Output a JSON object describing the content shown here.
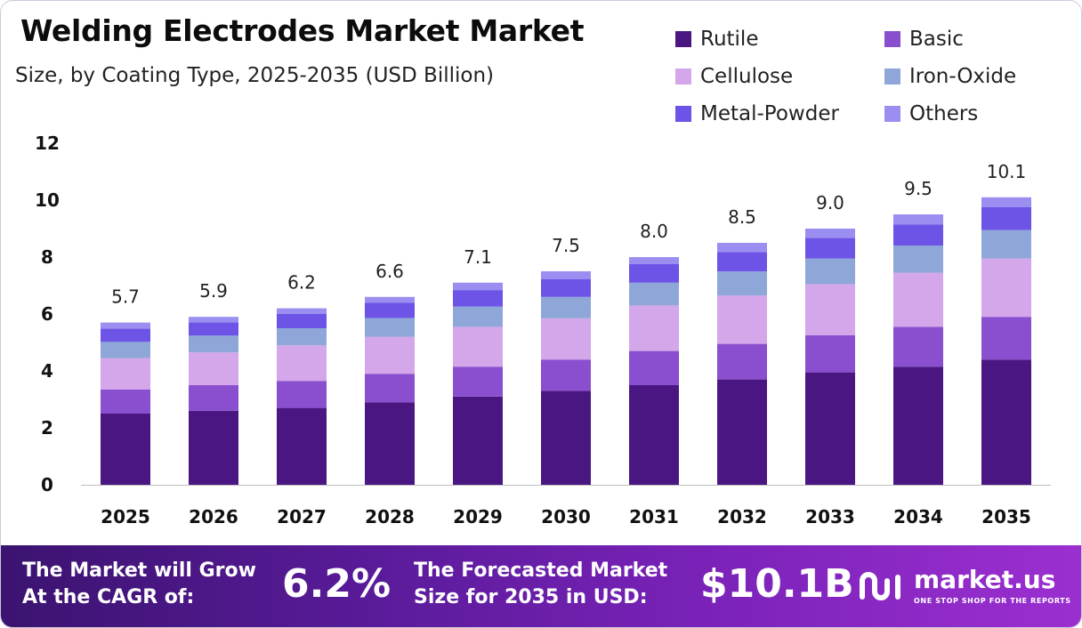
{
  "header": {
    "title": "Welding Electrodes Market Market",
    "subtitle": "Size, by Coating Type, 2025-2035 (USD Billion)"
  },
  "chart_data": {
    "type": "bar",
    "stacked": true,
    "categories": [
      "2025",
      "2026",
      "2027",
      "2028",
      "2029",
      "2030",
      "2031",
      "2032",
      "2033",
      "2034",
      "2035"
    ],
    "totals": [
      "5.7",
      "5.9",
      "6.2",
      "6.6",
      "7.1",
      "7.5",
      "8.0",
      "8.5",
      "9.0",
      "9.5",
      "10.1"
    ],
    "series": [
      {
        "name": "Rutile",
        "color": "#4a1782",
        "values": [
          2.5,
          2.6,
          2.7,
          2.9,
          3.1,
          3.3,
          3.5,
          3.7,
          3.95,
          4.15,
          4.4
        ]
      },
      {
        "name": "Basic",
        "color": "#8a4fcf",
        "values": [
          0.85,
          0.9,
          0.95,
          1.0,
          1.05,
          1.1,
          1.2,
          1.25,
          1.3,
          1.4,
          1.5
        ]
      },
      {
        "name": "Cellulose",
        "color": "#d4a6ea",
        "values": [
          1.1,
          1.15,
          1.25,
          1.3,
          1.4,
          1.45,
          1.6,
          1.7,
          1.8,
          1.9,
          2.05
        ]
      },
      {
        "name": "Iron-Oxide",
        "color": "#8ea7d8",
        "values": [
          0.57,
          0.59,
          0.6,
          0.66,
          0.71,
          0.75,
          0.8,
          0.85,
          0.9,
          0.95,
          1.0
        ]
      },
      {
        "name": "Metal-Powder",
        "color": "#6d54e6",
        "values": [
          0.47,
          0.47,
          0.5,
          0.54,
          0.58,
          0.63,
          0.65,
          0.68,
          0.72,
          0.75,
          0.8
        ]
      },
      {
        "name": "Others",
        "color": "#9a8ff0",
        "values": [
          0.21,
          0.19,
          0.2,
          0.2,
          0.26,
          0.27,
          0.25,
          0.32,
          0.33,
          0.35,
          0.35
        ]
      }
    ],
    "ylim": [
      0,
      12
    ],
    "yticks": [
      "0",
      "2",
      "4",
      "6",
      "8",
      "10",
      "12"
    ],
    "grid": false,
    "legend": "top-right"
  },
  "footer": {
    "cagr_label_line1": "The Market will Grow",
    "cagr_label_line2": "At the CAGR of:",
    "cagr_value": "6.2%",
    "forecast_label_line1": "The Forecasted Market",
    "forecast_label_line2": "Size for 2035 in USD:",
    "forecast_value": "$10.1B",
    "brand_name": "market.us",
    "brand_tagline": "ONE STOP SHOP FOR THE REPORTS"
  }
}
